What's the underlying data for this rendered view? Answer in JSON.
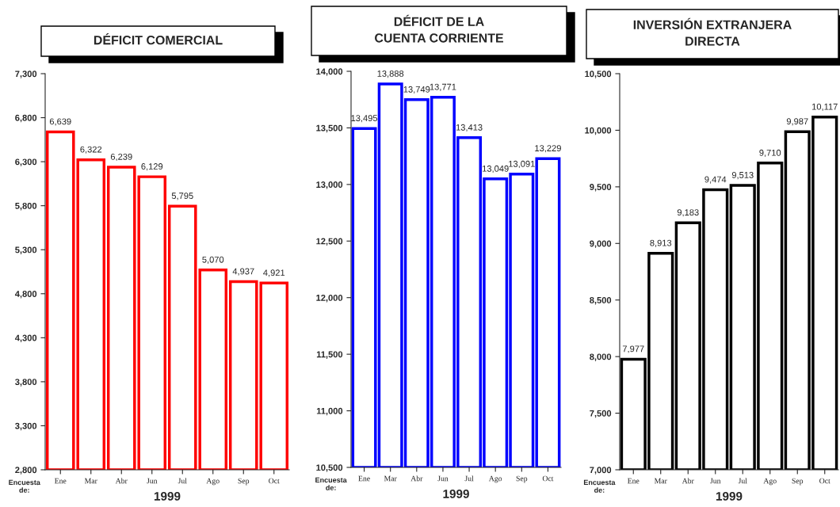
{
  "chart_data": [
    {
      "type": "bar",
      "title": "DÉFICIT COMERCIAL",
      "xlabel": "1999",
      "annotations": [
        "Encuesta de:"
      ],
      "categories": [
        "Ene",
        "Mar",
        "Abr",
        "Jun",
        "Jul",
        "Ago",
        "Sep",
        "Oct"
      ],
      "series": [
        {
          "color": "#ff0000",
          "values": [
            6639,
            6322,
            6239,
            6129,
            5795,
            5070,
            4937,
            4921
          ],
          "value_labels": [
            "6,639",
            "6,322",
            "6,239",
            "6,129",
            "5,795",
            "5,070",
            "4,937",
            "4,921"
          ]
        }
      ],
      "ylim": [
        2800,
        7300
      ],
      "yticks": [
        {
          "value": 2800,
          "label": "2,800"
        },
        {
          "value": 3300,
          "label": "3,300"
        },
        {
          "value": 3800,
          "label": "3,800"
        },
        {
          "value": 4300,
          "label": "4,300"
        },
        {
          "value": 4800,
          "label": "4,800"
        },
        {
          "value": 5300,
          "label": "5,300"
        },
        {
          "value": 5800,
          "label": "5,800"
        },
        {
          "value": 6300,
          "label": "6,300"
        },
        {
          "value": 6800,
          "label": "6,800"
        },
        {
          "value": 7300,
          "label": "7,300"
        }
      ],
      "grid": false,
      "legend": false
    },
    {
      "type": "bar",
      "title": "DÉFICIT DE LA\nCUENTA CORRIENTE",
      "xlabel": "1999",
      "annotations": [
        "Encuesta de:"
      ],
      "categories": [
        "Ene",
        "Mar",
        "Abr",
        "Jun",
        "Jul",
        "Ago",
        "Sep",
        "Oct"
      ],
      "series": [
        {
          "color": "#0000ff",
          "values": [
            13495,
            13888,
            13749,
            13771,
            13413,
            13049,
            13091,
            13229
          ],
          "value_labels": [
            "13,495",
            "13,888",
            "13,749",
            "13,771",
            "13,413",
            "13,049",
            "13,091",
            "13,229"
          ]
        }
      ],
      "ylim": [
        10500,
        14000
      ],
      "yticks": [
        {
          "value": 10500,
          "label": "10,500"
        },
        {
          "value": 11000,
          "label": "11,000"
        },
        {
          "value": 11500,
          "label": "11,500"
        },
        {
          "value": 12000,
          "label": "12,000"
        },
        {
          "value": 12500,
          "label": "12,500"
        },
        {
          "value": 13000,
          "label": "13,000"
        },
        {
          "value": 13500,
          "label": "13,500"
        },
        {
          "value": 14000,
          "label": "14,000"
        }
      ],
      "grid": false,
      "legend": false
    },
    {
      "type": "bar",
      "title": "INVERSIÓN EXTRANJERA\nDIRECTA",
      "xlabel": "1999",
      "annotations": [
        "Encuesta de:"
      ],
      "categories": [
        "Ene",
        "Mar",
        "Abr",
        "Jun",
        "Jul",
        "Ago",
        "Sep",
        "Oct"
      ],
      "series": [
        {
          "color": "#000000",
          "values": [
            7977,
            8913,
            9183,
            9474,
            9513,
            9710,
            9987,
            10117
          ],
          "value_labels": [
            "7,977",
            "8,913",
            "9,183",
            "9,474",
            "9,513",
            "9,710",
            "9,987",
            "10,117"
          ]
        }
      ],
      "ylim": [
        7000,
        10500
      ],
      "yticks": [
        {
          "value": 7000,
          "label": "7,000"
        },
        {
          "value": 7500,
          "label": "7,500"
        },
        {
          "value": 8000,
          "label": "8,000"
        },
        {
          "value": 8500,
          "label": "8,500"
        },
        {
          "value": 9000,
          "label": "9,000"
        },
        {
          "value": 9500,
          "label": "9,500"
        },
        {
          "value": 10000,
          "label": "10,000"
        },
        {
          "value": 10500,
          "label": "10,500"
        }
      ],
      "grid": false,
      "legend": false
    }
  ]
}
